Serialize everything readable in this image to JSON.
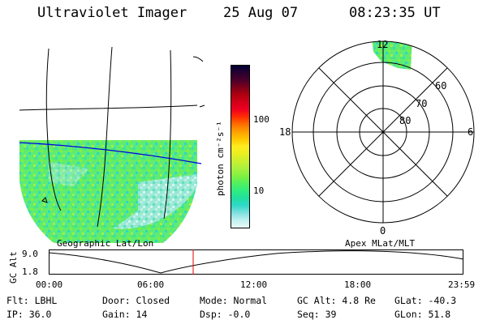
{
  "header": {
    "title": "Ultraviolet Imager",
    "date": "25 Aug 07",
    "time": "08:23:35 UT"
  },
  "colorbar": {
    "unit_label": "photon cm⁻²s⁻¹",
    "ticks": [
      "100",
      "10"
    ],
    "colors": [
      "#000033",
      "#2a0030",
      "#4a002a",
      "#80001a",
      "#b00010",
      "#d4001a",
      "#f00020",
      "#ff3000",
      "#ff7000",
      "#ffa000",
      "#ffc800",
      "#ffec20",
      "#e8f020",
      "#c8f030",
      "#a8f040",
      "#80f040",
      "#50f060",
      "#30ec80",
      "#20e0a0",
      "#30d8c8",
      "#80e0e0",
      "#c0f0f0",
      "#e8f8f8"
    ]
  },
  "left_map": {
    "caption": "Geographic Lat/Lon"
  },
  "polar_plot": {
    "caption": "Apex MLat/MLT",
    "mlt_labels": {
      "top": "12",
      "left": "18",
      "right": "6",
      "bottom": "0"
    },
    "lat_labels": [
      "60",
      "70",
      "80"
    ]
  },
  "altitude_plot": {
    "ylabel": "GC Alt",
    "yticks": [
      "9.0",
      "1.8"
    ],
    "xticks": [
      "00:00",
      "06:00",
      "12:00",
      "18:00",
      "23:59"
    ],
    "marker_color": "#e00000"
  },
  "info": {
    "filter": "Flt: LBHL",
    "ip": "IP: 36.0",
    "door": "Door: Closed",
    "gain": "Gain: 14",
    "mode": "Mode: Normal",
    "dsp": "Dsp:   -0.0",
    "gc_alt": "GC Alt: 4.8 Re",
    "seq": "Seq: 39",
    "glat": "GLat: -40.3",
    "glon": "GLon:  51.8"
  }
}
